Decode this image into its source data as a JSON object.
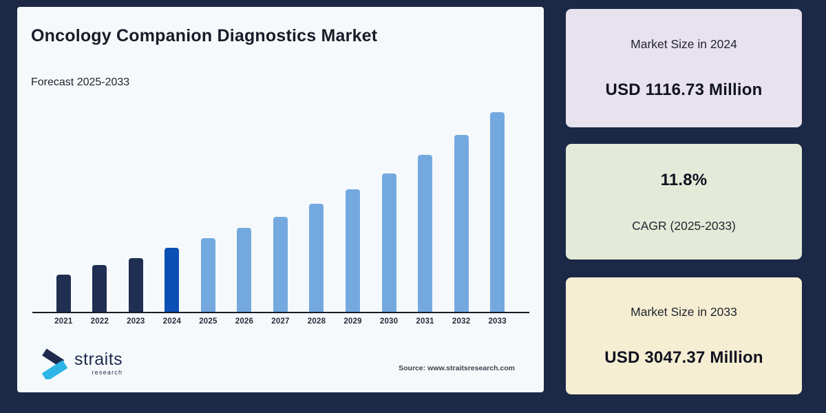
{
  "page": {
    "background": "#1b2846"
  },
  "report_card": {
    "title": "Oncology Companion Diagnostics Market",
    "subtitle": "Forecast 2025-2033",
    "source": "Source: www.straitsresearch.com",
    "logo": {
      "brand": "straits",
      "sub": "research",
      "navy": "#1e2b4d",
      "cyan": "#2db5e8"
    }
  },
  "chart_data": {
    "type": "bar",
    "title": "Oncology Companion Diagnostics Market",
    "xlabel": "",
    "ylabel": "",
    "unit": "USD Million",
    "grid": false,
    "legend": false,
    "ylim": [
      200,
      3050
    ],
    "categories": [
      "2021",
      "2022",
      "2023",
      "2024",
      "2025",
      "2026",
      "2027",
      "2028",
      "2029",
      "2030",
      "2031",
      "2032",
      "2033"
    ],
    "values": [
      732,
      864,
      963,
      1116.73,
      1248.5,
      1395.83,
      1560.53,
      1744.68,
      1950.55,
      2180.71,
      2438.04,
      2725.73,
      3047.37
    ],
    "bar_roles": [
      "historical",
      "historical",
      "historical",
      "current",
      "forecast",
      "forecast",
      "forecast",
      "forecast",
      "forecast",
      "forecast",
      "forecast",
      "forecast",
      "forecast"
    ],
    "bar_colors": {
      "historical": "#202e52",
      "current": "#0b50b5",
      "forecast": "#74a9df"
    },
    "axis_color": "#161b27"
  },
  "stat_cards": [
    {
      "label": "Market Size in 2024",
      "value": "USD 1116.73 Million",
      "background": "#e7e2ed"
    },
    {
      "label": "CAGR (2025-2033)",
      "value": "11.8%",
      "background": "#e3ebd8"
    },
    {
      "label": "Market Size in 2033",
      "value": "USD 3047.37 Million",
      "background": "#f5eed3"
    }
  ]
}
